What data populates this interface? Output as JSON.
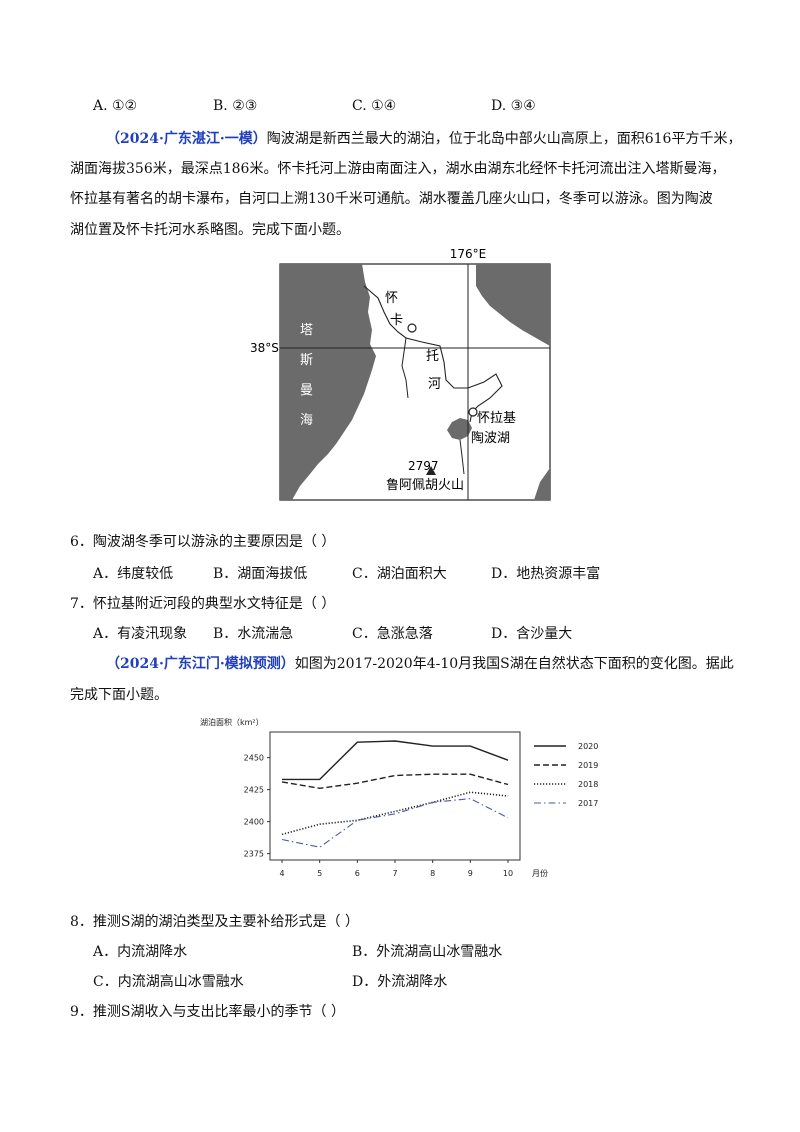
{
  "q5_options": [
    "A. ①②",
    "B. ②③",
    "C. ①④",
    "D. ③④"
  ],
  "section1": {
    "source": "（2024·广东湛江·一模）",
    "intro_line1": "陶波湖是新西兰最大的湖泊，位于北岛中部火山高原上，面积616平方千米，",
    "line2": "湖面海拔356米，最深点186米。怀卡托河上游由南面注入，湖水由湖东北经怀卡托河流出注入塔斯曼海，",
    "line3": "怀拉基有著名的胡卡瀑布，自河口上溯130千米可通航。湖水覆盖几座火山口，冬季可以游泳。图为陶波",
    "line4": "湖位置及怀卡托河水系略图。完成下面小题。"
  },
  "map": {
    "lon_label": "176°E",
    "lat_label": "38°S",
    "sea_chars": [
      "塔",
      "斯",
      "曼",
      "海"
    ],
    "river_chars": [
      "怀",
      "卡",
      "托",
      "河"
    ],
    "town": "怀拉基",
    "lake": "陶波湖",
    "peak_elev": "2797",
    "volcano": "鲁阿佩胡火山"
  },
  "q6": {
    "stem": "6．陶波湖冬季可以游泳的主要原因是（    ）",
    "options": [
      "A．纬度较低",
      "B．湖面海拔低",
      "C．湖泊面积大",
      "D．地热资源丰富"
    ]
  },
  "q7": {
    "stem": "7．怀拉基附近河段的典型水文特征是（    ）",
    "options": [
      "A．有凌汛现象",
      "B．水流湍急",
      "C．急涨急落",
      "D．含沙量大"
    ]
  },
  "section2": {
    "source": "（2024·广东江门·模拟预测）",
    "intro_line1": "如图为2017-2020年4-10月我国S湖在自然状态下面积的变化图。据此",
    "line2": "完成下面小题。"
  },
  "chart_data": {
    "type": "line",
    "title": "",
    "ylabel": "湖泊面积（km²）",
    "xlabel": "月份",
    "x": [
      4,
      5,
      6,
      7,
      8,
      9,
      10
    ],
    "ylim": [
      2370,
      2470
    ],
    "yticks": [
      2375,
      2400,
      2425,
      2450
    ],
    "legend_position": "right",
    "series": [
      {
        "name": "2020",
        "style": "solid",
        "color": "#222222",
        "values": [
          2433,
          2433,
          2462,
          2463,
          2459,
          2459,
          2448
        ]
      },
      {
        "name": "2019",
        "style": "dashed",
        "color": "#222222",
        "values": [
          2431,
          2426,
          2430,
          2436,
          2437,
          2437,
          2429
        ]
      },
      {
        "name": "2018",
        "style": "dotted",
        "color": "#222222",
        "values": [
          2390,
          2398,
          2401,
          2408,
          2415,
          2423,
          2420
        ]
      },
      {
        "name": "2017",
        "style": "dashdot",
        "color": "#4a5aa8",
        "values": [
          2386,
          2380,
          2401,
          2406,
          2415,
          2418,
          2403
        ]
      }
    ]
  },
  "q8": {
    "stem": "8．推测S湖的湖泊类型及主要补给形式是（    ）",
    "options": [
      "A．内流湖降水",
      "B．外流湖高山冰雪融水",
      "C．内流湖高山冰雪融水",
      "D．外流湖降水"
    ]
  },
  "q9": {
    "stem": "9．推测S湖收入与支出比率最小的季节（    ）"
  }
}
